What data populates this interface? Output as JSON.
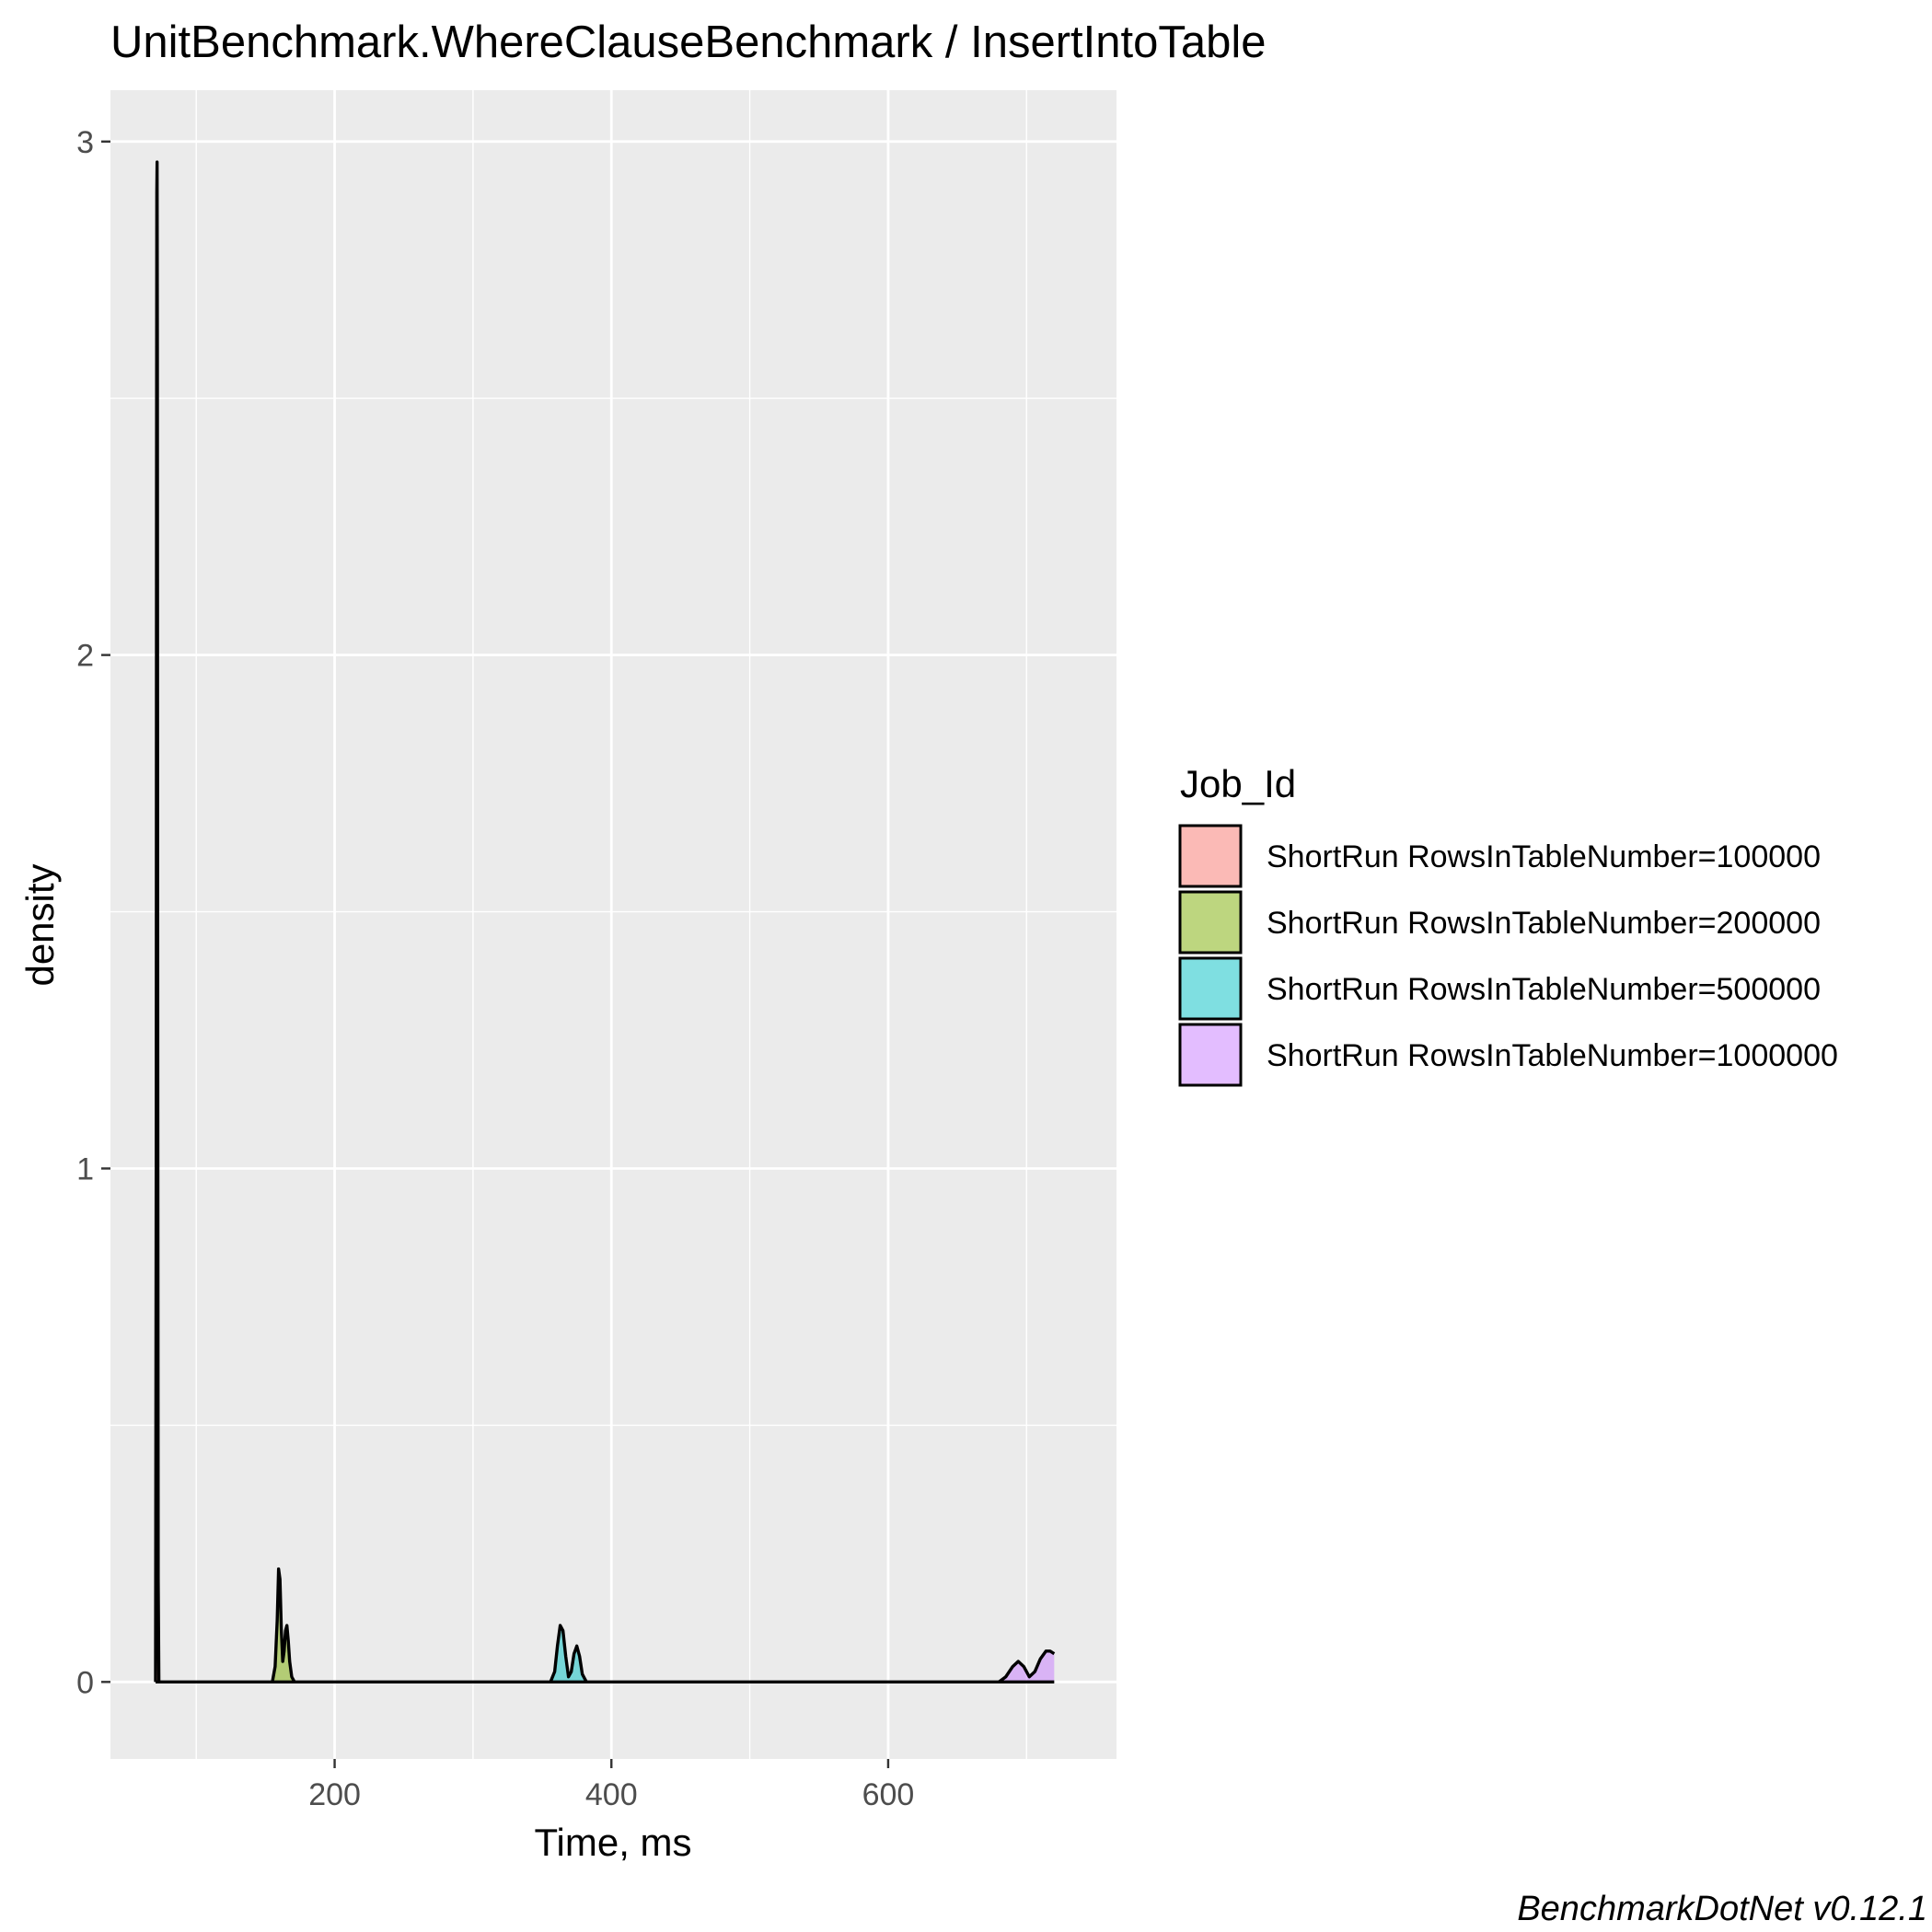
{
  "chart_data": {
    "type": "area",
    "title": "UnitBenchmark.WhereClauseBenchmark / InsertIntoTable",
    "xlabel": "Time, ms",
    "ylabel": "density",
    "caption": "BenchmarkDotNet v0.12.1",
    "xlim": [
      38,
      765
    ],
    "ylim": [
      -0.15,
      3.1
    ],
    "x_ticks": [
      200,
      400,
      600
    ],
    "x_minor_ticks": [
      100,
      300,
      500,
      700
    ],
    "y_ticks": [
      0,
      1,
      2,
      3
    ],
    "y_minor_ticks": [
      0.5,
      1.5,
      2.5
    ],
    "grid": true,
    "legend_position": "right",
    "legend_title": "Job_Id",
    "series": [
      {
        "name": "ShortRun RowsInTableNumber=100000",
        "color": "#F8766D",
        "x": [
          70.6,
          71.1,
          71.3,
          71.5,
          71.7,
          71.9,
          72.2,
          72.5,
          73.0
        ],
        "y": [
          0,
          1.1,
          2.3,
          2.9,
          2.96,
          2.6,
          1.2,
          0.2,
          0
        ]
      },
      {
        "name": "ShortRun RowsInTableNumber=200000",
        "color": "#7CAE00",
        "x": [
          155,
          157,
          158.5,
          159.5,
          160.5,
          161.5,
          162.5,
          163.5,
          164.5,
          165.5,
          166.5,
          167.5,
          169,
          171
        ],
        "y": [
          0,
          0.03,
          0.12,
          0.22,
          0.2,
          0.1,
          0.04,
          0.06,
          0.1,
          0.11,
          0.08,
          0.04,
          0.01,
          0
        ]
      },
      {
        "name": "ShortRun RowsInTableNumber=500000",
        "color": "#00BFC4",
        "x": [
          356,
          359,
          361,
          363,
          365,
          367,
          369,
          371,
          373,
          375,
          377,
          379,
          382
        ],
        "y": [
          0,
          0.02,
          0.07,
          0.11,
          0.1,
          0.05,
          0.01,
          0.02,
          0.055,
          0.07,
          0.05,
          0.015,
          0
        ]
      },
      {
        "name": "ShortRun RowsInTableNumber=1000000",
        "color": "#C77CFF",
        "x": [
          680,
          685,
          690,
          694,
          698,
          702,
          706,
          710,
          714,
          717,
          720
        ],
        "y": [
          0,
          0.01,
          0.03,
          0.04,
          0.03,
          0.01,
          0.02,
          0.045,
          0.06,
          0.06,
          0.055
        ]
      }
    ]
  }
}
